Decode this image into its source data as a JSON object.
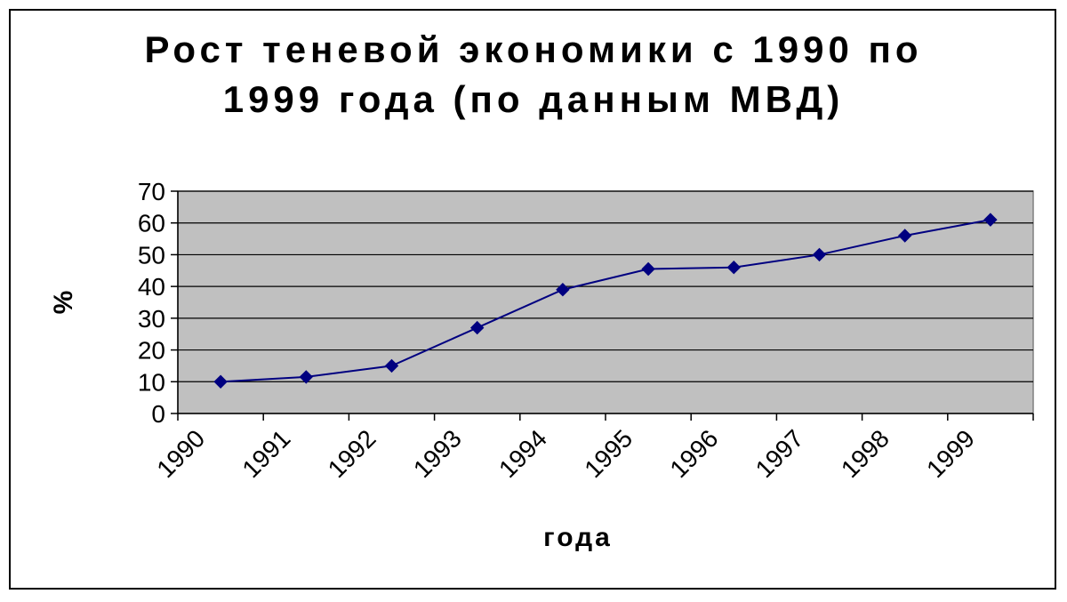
{
  "chart_data": {
    "type": "line",
    "title": "Рост теневой экономики с 1990 по\n1999 года (по данным МВД)",
    "xlabel": "года",
    "ylabel": "%",
    "categories": [
      "1990",
      "1991",
      "1992",
      "1993",
      "1994",
      "1995",
      "1996",
      "1997",
      "1998",
      "1999"
    ],
    "series": [
      {
        "values": [
          10,
          11.5,
          15,
          27,
          39,
          45.5,
          46,
          50,
          56,
          61
        ]
      }
    ],
    "ylim": [
      0,
      70
    ],
    "yticks": [
      0,
      10,
      20,
      30,
      40,
      50,
      60,
      70
    ],
    "grid": true,
    "legend": "none",
    "colors": {
      "line": "#000080",
      "marker": "#000080",
      "plot_bg": "#c0c0c0",
      "grid": "#000000"
    }
  }
}
